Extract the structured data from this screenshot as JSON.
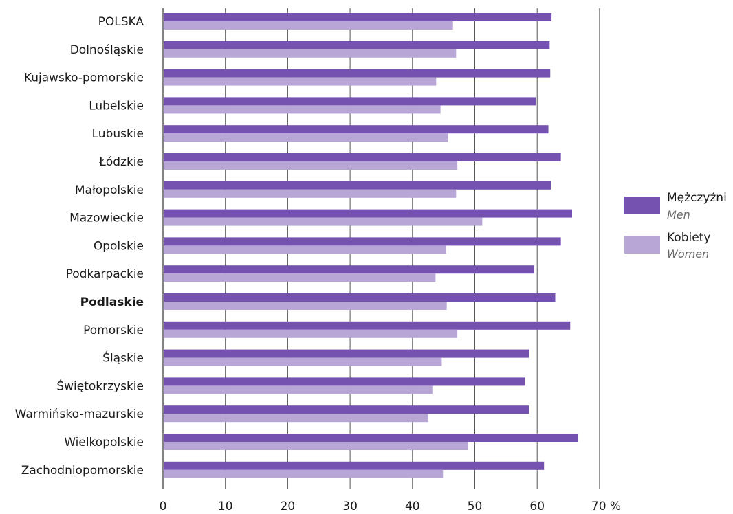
{
  "chart_data": {
    "type": "bar",
    "orientation": "horizontal",
    "categories": [
      "POLSKA",
      "Dolnośląskie",
      "Kujawsko-pomorskie",
      "Lubelskie",
      "Lubuskie",
      "Łódzkie",
      "Małopolskie",
      "Mazowieckie",
      "Opolskie",
      "Podkarpackie",
      "Podlaskie",
      "Pomorskie",
      "Śląskie",
      "Świętokrzyskie",
      "Warmińsko-mazurskie",
      "Wielkopolskie",
      "Zachodniopomorskie"
    ],
    "highlighted_category": "Podlaskie",
    "series": [
      {
        "name": "Mężczyźni",
        "name_en": "Men",
        "color": "#7552b0",
        "values": [
          62.3,
          62.0,
          62.1,
          59.8,
          61.8,
          63.8,
          62.2,
          65.6,
          63.8,
          59.5,
          62.9,
          65.3,
          58.7,
          58.1,
          58.7,
          66.5,
          61.1
        ]
      },
      {
        "name": "Kobiety",
        "name_en": "Women",
        "color": "#b8a6d6",
        "values": [
          46.5,
          47.0,
          43.8,
          44.5,
          45.7,
          47.2,
          47.0,
          51.2,
          45.4,
          43.7,
          45.5,
          47.2,
          44.7,
          43.2,
          42.5,
          48.9,
          44.9
        ]
      }
    ],
    "xlim": [
      0,
      70
    ],
    "xticks": [
      0,
      10,
      20,
      30,
      40,
      50,
      60,
      70
    ],
    "xtick_labels": [
      "0",
      "10",
      "20",
      "30",
      "40",
      "50",
      "60",
      "70 %"
    ],
    "grid": true,
    "legend_position": "right"
  }
}
